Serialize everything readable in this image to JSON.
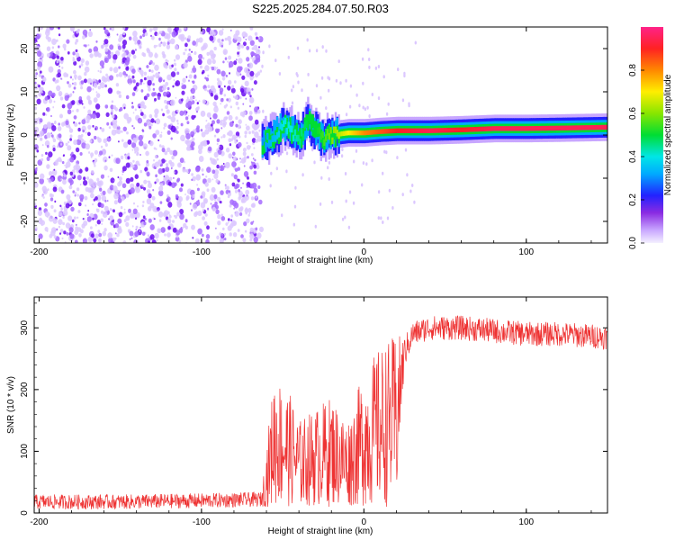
{
  "title": "S225.2025.284.07.50.R03",
  "chart_data": [
    {
      "type": "heatmap",
      "title": "S225.2025.284.07.50.R03",
      "xlabel": "Height of straight line (km)",
      "ylabel": "Frequency (Hz)",
      "xlim": [
        -203,
        150
      ],
      "ylim": [
        -25,
        25
      ],
      "xticks": [
        -200,
        -100,
        0,
        100
      ],
      "yticks": [
        -20,
        -10,
        0,
        10,
        20
      ],
      "noise_region_x": [
        -203,
        -63
      ],
      "signal_track": {
        "x": [
          -63,
          -55,
          -50,
          -45,
          -40,
          -35,
          -30,
          -25,
          -20,
          -10,
          0,
          10,
          20,
          40,
          60,
          80,
          100,
          120,
          150
        ],
        "freq_hz": [
          -2,
          0,
          2,
          1,
          -1,
          3,
          1,
          -1,
          0,
          0.5,
          0.5,
          0.8,
          1,
          1,
          1.2,
          1.5,
          1.5,
          1.6,
          1.8
        ],
        "amplitude": [
          0.3,
          0.35,
          0.4,
          0.4,
          0.45,
          0.5,
          0.5,
          0.55,
          0.6,
          0.7,
          0.8,
          0.85,
          0.9,
          0.95,
          0.9,
          0.95,
          0.95,
          0.95,
          0.95
        ]
      },
      "colorbar": {
        "label": "Normalized spectral amplitude",
        "range": [
          0,
          1
        ],
        "ticks": [
          "0.0",
          "0.2",
          "0.4",
          "0.6",
          "0.8"
        ],
        "tick_values": [
          0.0,
          0.2,
          0.4,
          0.6,
          0.8
        ]
      }
    },
    {
      "type": "line",
      "xlabel": "Height of straight line (km)",
      "ylabel": "SNR (10 * v/v)",
      "xlim": [
        -203,
        150
      ],
      "ylim": [
        0,
        350
      ],
      "xticks": [
        -200,
        -100,
        0,
        100
      ],
      "yticks": [
        0,
        100,
        200,
        300
      ],
      "color": "#ee3333",
      "envelope": {
        "x": [
          -203,
          -150,
          -100,
          -63,
          -55,
          -50,
          -45,
          -40,
          -30,
          -20,
          -10,
          0,
          10,
          20,
          25,
          30,
          40,
          60,
          80,
          100,
          120,
          150
        ],
        "mid": [
          18,
          18,
          20,
          22,
          120,
          110,
          100,
          80,
          90,
          100,
          80,
          120,
          140,
          150,
          260,
          290,
          300,
          300,
          295,
          290,
          290,
          285
        ],
        "amp": [
          12,
          12,
          12,
          12,
          110,
          100,
          90,
          70,
          80,
          90,
          70,
          110,
          130,
          140,
          25,
          20,
          20,
          20,
          20,
          20,
          20,
          20
        ]
      }
    }
  ]
}
